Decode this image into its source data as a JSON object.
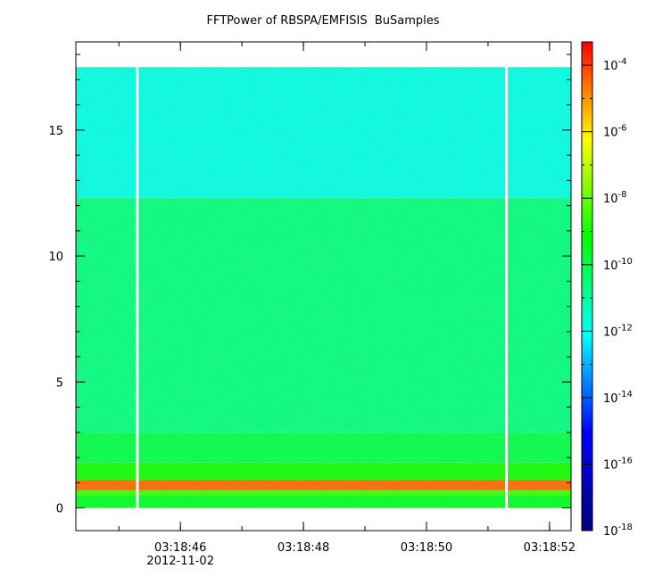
{
  "chart_data": {
    "type": "heatmap",
    "title": "FFTPower of RBSPA/EMFISIS  BuSamples",
    "x": {
      "tick_labels": [
        "03:18:46",
        "03:18:48",
        "03:18:50",
        "03:18:52"
      ],
      "tick_values_s": [
        46,
        48,
        50,
        52
      ],
      "date_label": "2012-11-02",
      "range_s": [
        44.3,
        52.35
      ]
    },
    "y": {
      "tick_labels": [
        "0",
        "5",
        "10",
        "15"
      ],
      "tick_values": [
        0,
        5,
        10,
        15
      ],
      "range": [
        -0.9,
        18.5
      ],
      "data_max": 17.5
    },
    "gaps_s": [
      45.3,
      51.3
    ],
    "bands": [
      {
        "from": 0.0,
        "to": 0.5,
        "level": -9.5
      },
      {
        "from": 0.5,
        "to": 0.7,
        "level": -8.5
      },
      {
        "from": 0.7,
        "to": 1.1,
        "level": -4.5
      },
      {
        "from": 1.1,
        "to": 1.8,
        "level": -9.0
      },
      {
        "from": 1.8,
        "to": 3.0,
        "level": -10.0
      },
      {
        "from": 3.0,
        "to": 12.3,
        "level": -10.6
      },
      {
        "from": 12.3,
        "to": 17.5,
        "level": -11.8
      }
    ],
    "colorbar": {
      "scale": "log",
      "range_exponent": [
        -18,
        -3.3
      ],
      "tick_exponents": [
        -4,
        -6,
        -8,
        -10,
        -12,
        -14,
        -16,
        -18
      ],
      "tick_base": "10",
      "colors": [
        "#000080",
        "#0000ff",
        "#00ffff",
        "#00ff00",
        "#ffff00",
        "#ff0000"
      ]
    }
  }
}
